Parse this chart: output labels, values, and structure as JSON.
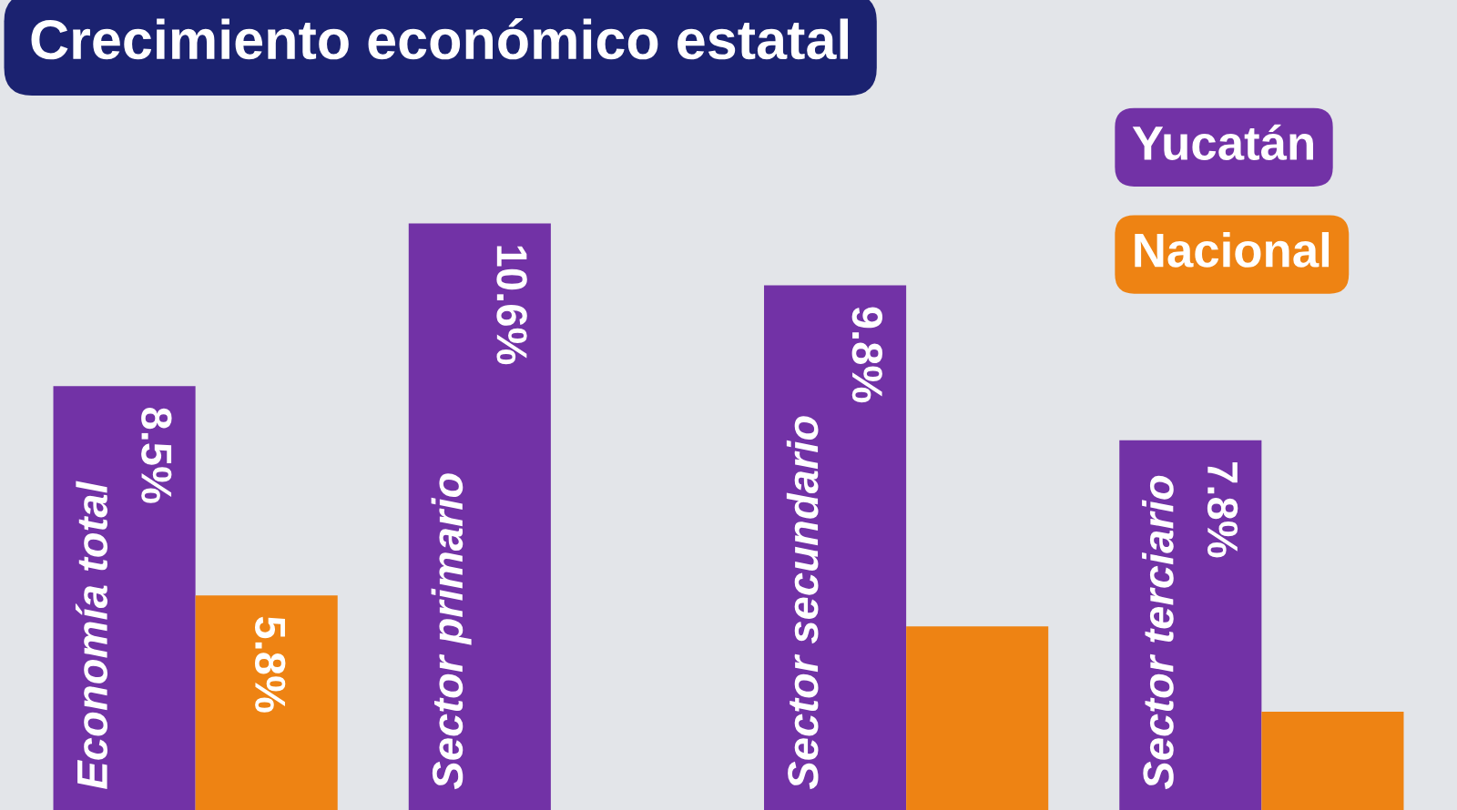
{
  "chart_data": {
    "type": "bar",
    "title": "Crecimiento económico estatal",
    "categories": [
      "Economía total",
      "Sector primario",
      "Sector secundario",
      "Sector terciario"
    ],
    "series": [
      {
        "name": "Yucatán",
        "color": "#7232a6",
        "values": [
          8.5,
          10.6,
          9.8,
          7.8
        ],
        "value_labels": [
          "8.5%",
          "10.6%",
          "9.8%",
          "7.8%"
        ]
      },
      {
        "name": "Nacional",
        "color": "#ee8313",
        "values": [
          5.8,
          null,
          5.4,
          4.3
        ],
        "value_labels": [
          "5.8%",
          null,
          null,
          null
        ]
      }
    ],
    "tick_labels": "x",
    "legend": "top right"
  }
}
